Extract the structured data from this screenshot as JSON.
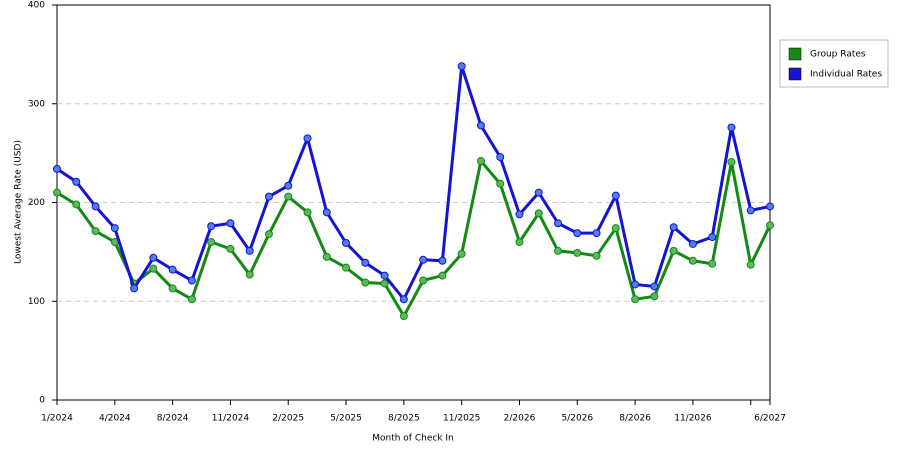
{
  "chart_data": {
    "type": "line",
    "x_label": "Month of Check In",
    "y_label": "Lowest Average Rate (USD)",
    "categories": [
      "1/2024",
      null,
      null,
      "4/2024",
      null,
      null,
      "8/2024",
      null,
      null,
      "11/2024",
      null,
      null,
      "2/2025",
      null,
      null,
      "5/2025",
      null,
      null,
      "8/2025",
      null,
      null,
      "11/2025",
      null,
      null,
      "2/2026",
      null,
      null,
      "5/2026",
      null,
      null,
      "8/2026",
      null,
      null,
      "11/2026",
      null,
      null,
      null,
      "6/2027"
    ],
    "series": [
      {
        "name": "Group Rates",
        "color": "#138a13",
        "marker_color": "#5cb85c",
        "values": [
          210,
          198,
          171,
          160,
          118,
          133,
          113,
          102,
          160,
          153,
          127,
          168,
          206,
          190,
          145,
          134,
          119,
          118,
          85,
          121,
          126,
          148,
          242,
          219,
          160,
          189,
          151,
          149,
          146,
          174,
          102,
          105,
          151,
          141,
          138,
          241,
          137,
          177
        ]
      },
      {
        "name": "Individual Rates",
        "color": "#1414d2",
        "marker_color": "#4f7fe0",
        "values": [
          234,
          221,
          196,
          174,
          113,
          144,
          132,
          121,
          176,
          179,
          151,
          206,
          217,
          265,
          190,
          159,
          139,
          126,
          102,
          142,
          141,
          338,
          278,
          246,
          188,
          210,
          179,
          169,
          169,
          207,
          117,
          115,
          175,
          158,
          165,
          276,
          192,
          196
        ]
      }
    ],
    "ylim": [
      0,
      400
    ],
    "yticks": [
      0,
      100,
      200,
      300,
      400
    ],
    "grid": true,
    "legend": "right"
  }
}
